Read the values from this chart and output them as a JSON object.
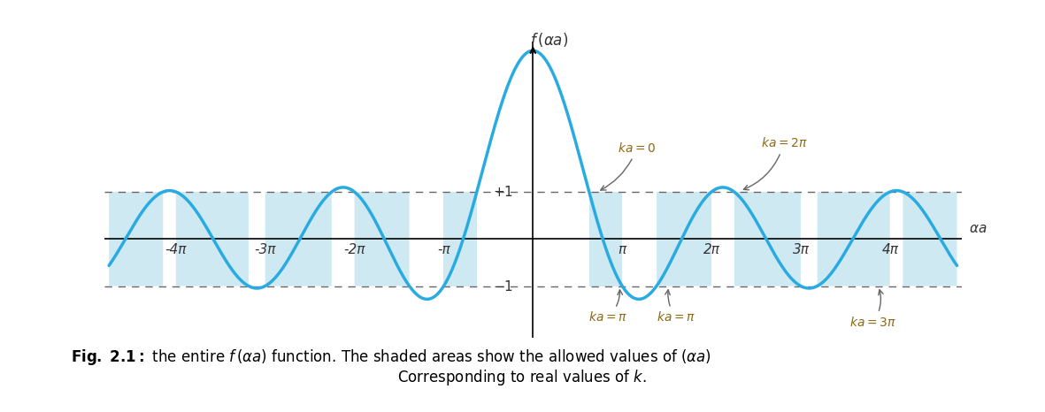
{
  "pi": 3.14159265358979,
  "P": 3.0,
  "xlim_pi": [
    -4.8,
    4.8
  ],
  "ylim": [
    -2.1,
    4.2
  ],
  "curve_color": "#29ABE2",
  "shade_color": "#A8D8EA",
  "shade_alpha": 0.55,
  "dash_color": "#666666",
  "ann_color": "#8B6914",
  "curve_lw": 2.5,
  "tick_labels_x": [
    "-4π",
    "-3π",
    "-2π",
    "-π",
    "π",
    "2π",
    "3π",
    "4π"
  ],
  "tick_positions_x": [
    -4,
    -3,
    -2,
    -1,
    1,
    2,
    3,
    4
  ],
  "figsize": [
    11.81,
    4.66
  ],
  "dpi": 100
}
